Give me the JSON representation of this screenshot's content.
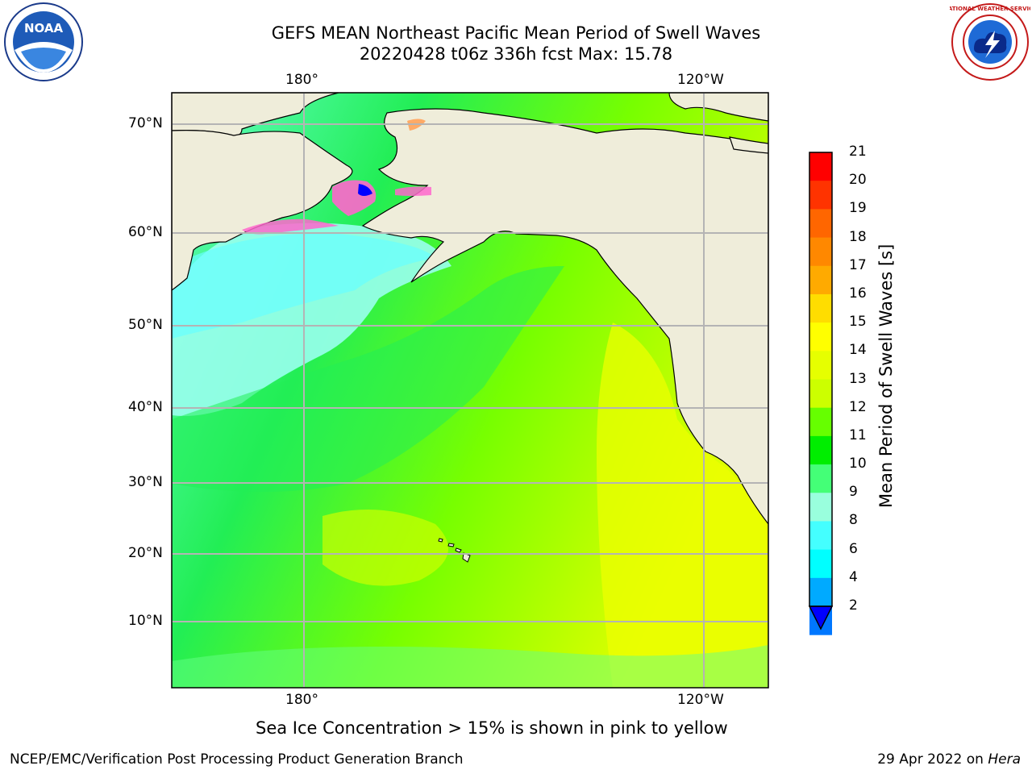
{
  "header": {
    "title_line1": "GEFS MEAN Northeast Pacific Mean Period of Swell Waves",
    "title_line2": "20220428 t06z 336h fcst   Max: 15.78"
  },
  "logos": {
    "left": {
      "name": "noaa-logo",
      "text": "NOAA"
    },
    "right": {
      "name": "nws-logo",
      "text": "NATIONAL WEATHER SERVICE"
    }
  },
  "map": {
    "top_lon_labels": [
      "180°",
      "120°W"
    ],
    "bottom_lon_labels": [
      "180°",
      "120°W"
    ],
    "lat_labels": [
      "70°N",
      "60°N",
      "50°N",
      "40°N",
      "30°N",
      "20°N",
      "10°N"
    ],
    "colors": {
      "land": "#efedda",
      "ice_low": "#ff66cc",
      "ice_high": "#0000ff",
      "grid": "#b4b4b4"
    }
  },
  "colorbar": {
    "title": "Mean Period of Swell Waves [s]",
    "labels": [
      "21",
      "20",
      "19",
      "18",
      "17",
      "16",
      "15",
      "14",
      "13",
      "12",
      "11",
      "10",
      "9",
      "8",
      "6",
      "4",
      "2"
    ],
    "colors": [
      "#ff0000",
      "#ff3300",
      "#ff6600",
      "#ff8800",
      "#ffaa00",
      "#ffdd00",
      "#ffff00",
      "#e6ff00",
      "#ccff00",
      "#66ff00",
      "#00ee00",
      "#44ff77",
      "#99ffdd",
      "#44ffff",
      "#00ffff",
      "#00aaff",
      "#0077ff"
    ],
    "extend_color": "#0000ff"
  },
  "note": "Sea Ice Concentration > 15% is shown in pink to yellow",
  "footer": {
    "left": "NCEP/EMC/Verification Post Processing Product Generation Branch",
    "date": "29 Apr 2022 on ",
    "machine": "Hera"
  }
}
